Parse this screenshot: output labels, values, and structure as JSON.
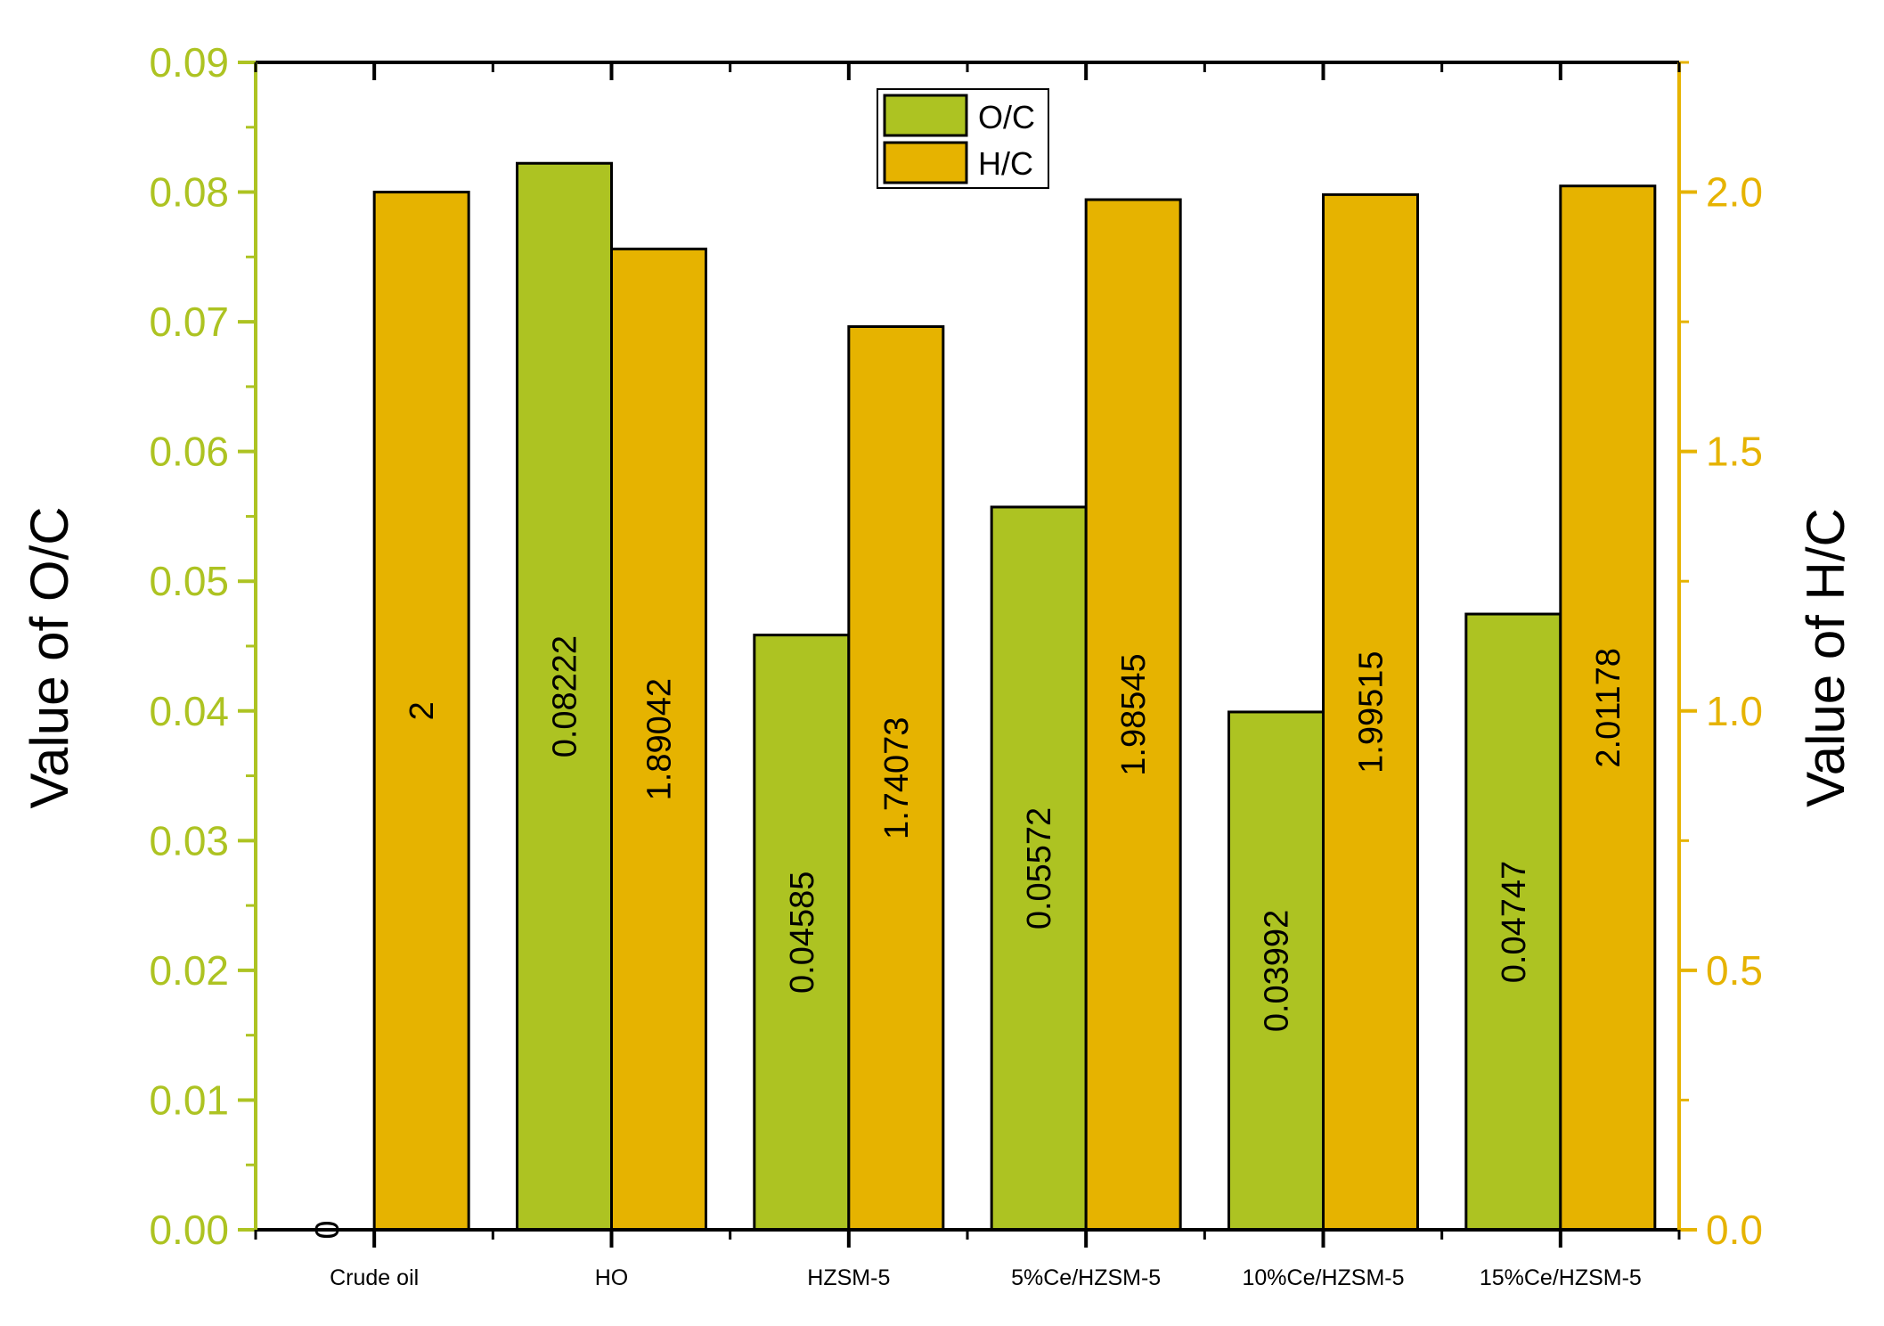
{
  "chart_data": {
    "type": "bar",
    "categories": [
      "Crude oil",
      "HO",
      "HZSM-5",
      "5%Ce/HZSM-5",
      "10%Ce/HZSM-5",
      "15%Ce/HZSM-5"
    ],
    "series": [
      {
        "name": "O/C",
        "axis": "left",
        "color": "#adc322",
        "values": [
          0,
          0.08222,
          0.04585,
          0.05572,
          0.03992,
          0.04747
        ],
        "labels": [
          "0",
          "0.08222",
          "0.04585",
          "0.05572",
          "0.03992",
          "0.04747"
        ]
      },
      {
        "name": "H/C",
        "axis": "right",
        "color": "#e6b300",
        "values": [
          2,
          1.89042,
          1.74073,
          1.98545,
          1.99515,
          2.01178
        ],
        "labels": [
          "2",
          "1.89042",
          "1.74073",
          "1.98545",
          "1.99515",
          "2.01178"
        ]
      }
    ],
    "ylabel_left": "Value of O/C",
    "ylabel_right": "Value of H/C",
    "ylim_left": [
      0,
      0.09
    ],
    "ylim_right": [
      0,
      2.25
    ],
    "yticks_left": [
      "0.00",
      "0.01",
      "0.02",
      "0.03",
      "0.04",
      "0.05",
      "0.06",
      "0.07",
      "0.08",
      "0.09"
    ],
    "yticks_right": [
      "0.0",
      "0.5",
      "1.0",
      "1.5",
      "2.0"
    ],
    "left_axis_color": "#adc322",
    "right_axis_color": "#e6b300",
    "legend": {
      "position": "top-center",
      "entries": [
        "O/C",
        "H/C"
      ]
    }
  }
}
